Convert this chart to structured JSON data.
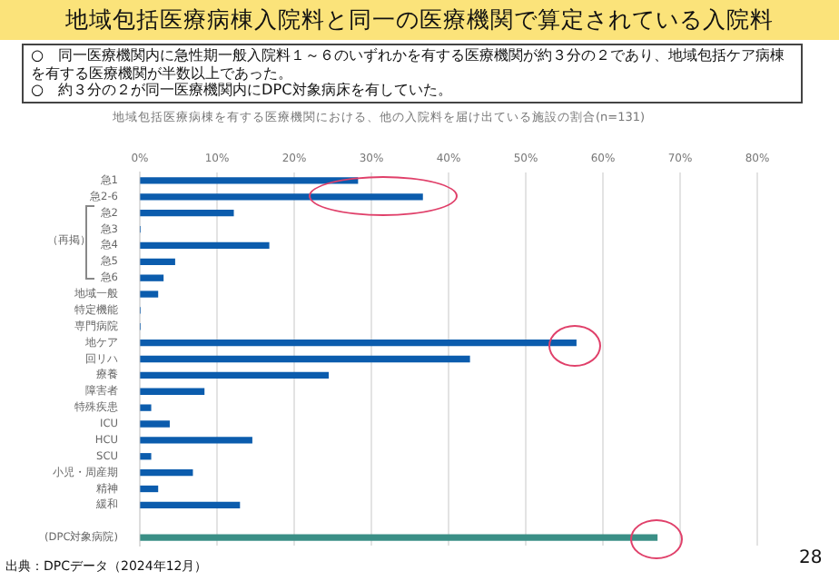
{
  "chart_data": {
    "type": "bar",
    "orientation": "horizontal",
    "title": "地域包括医療病棟入院料と同一の医療機関で算定されている入院料",
    "subtitle": "地域包括医療病棟を有する医療機関における、他の入院料を届け出ている施設の割合(n=131)",
    "categories": [
      "急1",
      "急2-6",
      "急2",
      "急3",
      "急4",
      "急5",
      "急6",
      "地域一般",
      "特定機能",
      "専門病院",
      "地ケア",
      "回リハ",
      "療養",
      "障害者",
      "特殊疾患",
      "ICU",
      "HCU",
      "SCU",
      "小児・周産期",
      "精神",
      "緩和",
      null,
      "(DPC対象病院)"
    ],
    "values": [
      28.2,
      36.6,
      12.1,
      0,
      16.7,
      4.5,
      3.0,
      2.3,
      0,
      0,
      56.5,
      42.7,
      24.4,
      8.3,
      1.4,
      3.8,
      14.5,
      1.4,
      6.8,
      2.3,
      12.9,
      null,
      67.0
    ],
    "colors": [
      "#0b5cad",
      "#0b5cad",
      "#0b5cad",
      "#0b5cad",
      "#0b5cad",
      "#0b5cad",
      "#0b5cad",
      "#0b5cad",
      "#0b5cad",
      "#0b5cad",
      "#0b5cad",
      "#0b5cad",
      "#0b5cad",
      "#0b5cad",
      "#0b5cad",
      "#0b5cad",
      "#0b5cad",
      "#0b5cad",
      "#0b5cad",
      "#0b5cad",
      "#0b5cad",
      "#0b5cad",
      "#3a8f86"
    ],
    "xlim": [
      0,
      80
    ],
    "xticks": [
      {
        "value": 0,
        "label": "0%"
      },
      {
        "value": 10,
        "label": "10%"
      },
      {
        "value": 20,
        "label": "20%"
      },
      {
        "value": 30,
        "label": "30%"
      },
      {
        "value": 40,
        "label": "40%"
      },
      {
        "value": 50,
        "label": "50%"
      },
      {
        "value": 60,
        "label": "60%"
      },
      {
        "value": 70,
        "label": "70%"
      },
      {
        "value": 80,
        "label": "80%"
      }
    ],
    "grid": "x",
    "legend": false,
    "annotations": [
      "○　同一医療機関内に急性期一般入院料１～６のいずれかを有する医療機関が約３分の２であり、地域包括ケア病棟を有する医療機関が半数以上であった。",
      "○　約３分の２が同一医療機関内にDPC対象病床を有していた。",
      "（再掲）",
      "出典：DPCデータ（2024年12月）",
      "28"
    ]
  }
}
